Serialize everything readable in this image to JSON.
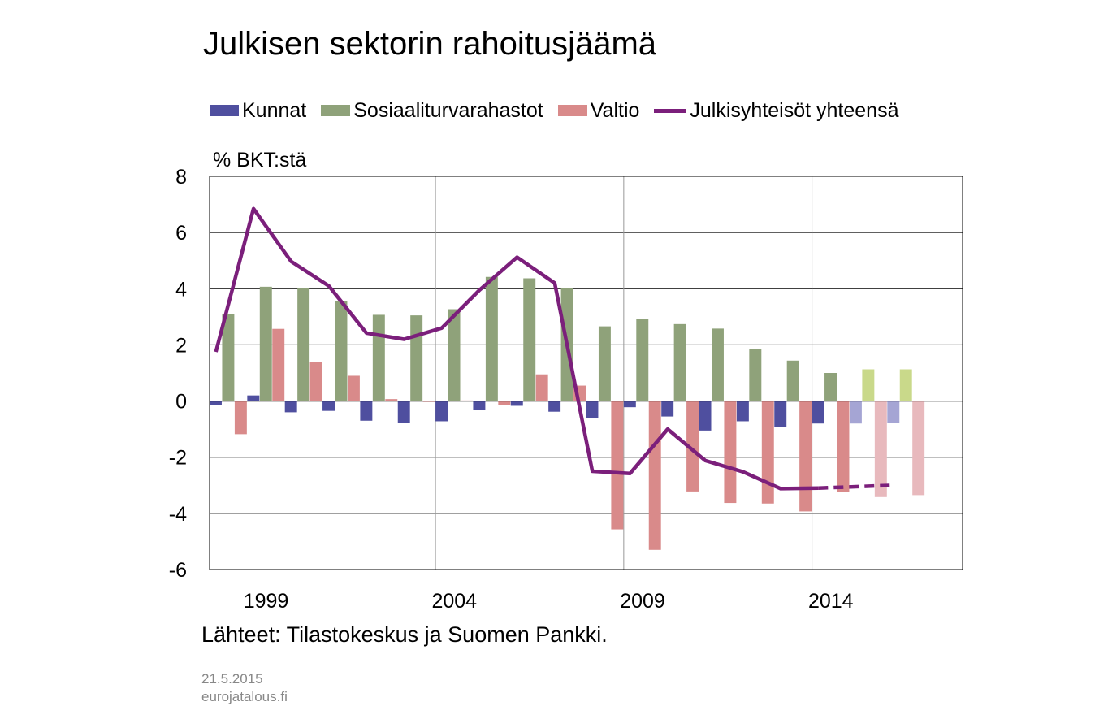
{
  "title": "Julkisen sektorin rahoitusjäämä",
  "footer": {
    "source": "Lähteet: Tilastokeskus ja Suomen Pankki.",
    "date": "21.5.2015",
    "site": "eurojatalous.fi"
  },
  "chart_data": {
    "type": "bar",
    "title": "Julkisen sektorin rahoitusjäämä",
    "ylabel": "% BKT:stä",
    "ylim": [
      -6,
      8
    ],
    "yticks": [
      8,
      6,
      4,
      2,
      0,
      -2,
      -4,
      -6
    ],
    "x": [
      1998,
      1999,
      2000,
      2001,
      2002,
      2003,
      2004,
      2005,
      2006,
      2007,
      2008,
      2009,
      2010,
      2011,
      2012,
      2013,
      2014,
      2015,
      2016,
      2017
    ],
    "xtick_labels": [
      "1999",
      "2004",
      "2009",
      "2014"
    ],
    "xtick_values": [
      1999,
      2004,
      2009,
      2014
    ],
    "forecast_from": 2015,
    "legend_position": "top",
    "grid": true,
    "series": [
      {
        "name": "Kunnat",
        "kind": "bar",
        "color": "#4f4f9f",
        "forecast_color": "#a5a5d4",
        "values": [
          -0.15,
          0.2,
          -0.4,
          -0.35,
          -0.7,
          -0.78,
          -0.72,
          -0.33,
          -0.17,
          -0.38,
          -0.62,
          -0.22,
          -0.55,
          -1.05,
          -0.72,
          -0.92,
          -0.8,
          -0.8,
          -0.78,
          null
        ]
      },
      {
        "name": "Sosiaaliturvarahastot",
        "kind": "bar",
        "color": "#8fa27a",
        "forecast_color": "#c9d98a",
        "values": [
          3.1,
          4.07,
          4.02,
          3.55,
          3.07,
          3.05,
          3.27,
          4.42,
          4.37,
          4.03,
          2.66,
          2.93,
          2.74,
          2.58,
          1.86,
          1.44,
          1.0,
          1.13,
          1.13,
          null
        ]
      },
      {
        "name": "Valtio",
        "kind": "bar",
        "color": "#d98a8a",
        "forecast_color": "#e8b9bd",
        "values": [
          -1.18,
          2.57,
          1.4,
          0.9,
          0.07,
          -0.03,
          0.02,
          -0.15,
          0.95,
          0.55,
          -4.57,
          -5.3,
          -3.22,
          -3.63,
          -3.65,
          -3.93,
          -3.25,
          -3.42,
          -3.35,
          null
        ]
      },
      {
        "name": "Julkisyhteisöt yhteensä",
        "kind": "line",
        "color": "#7b1f7b",
        "values": [
          1.75,
          6.85,
          4.97,
          4.1,
          2.42,
          2.2,
          2.6,
          3.95,
          5.12,
          4.2,
          -2.5,
          -2.58,
          -1.0,
          -2.12,
          -2.52,
          -3.12,
          -3.1,
          -3.05,
          -3.0,
          null
        ]
      }
    ]
  }
}
